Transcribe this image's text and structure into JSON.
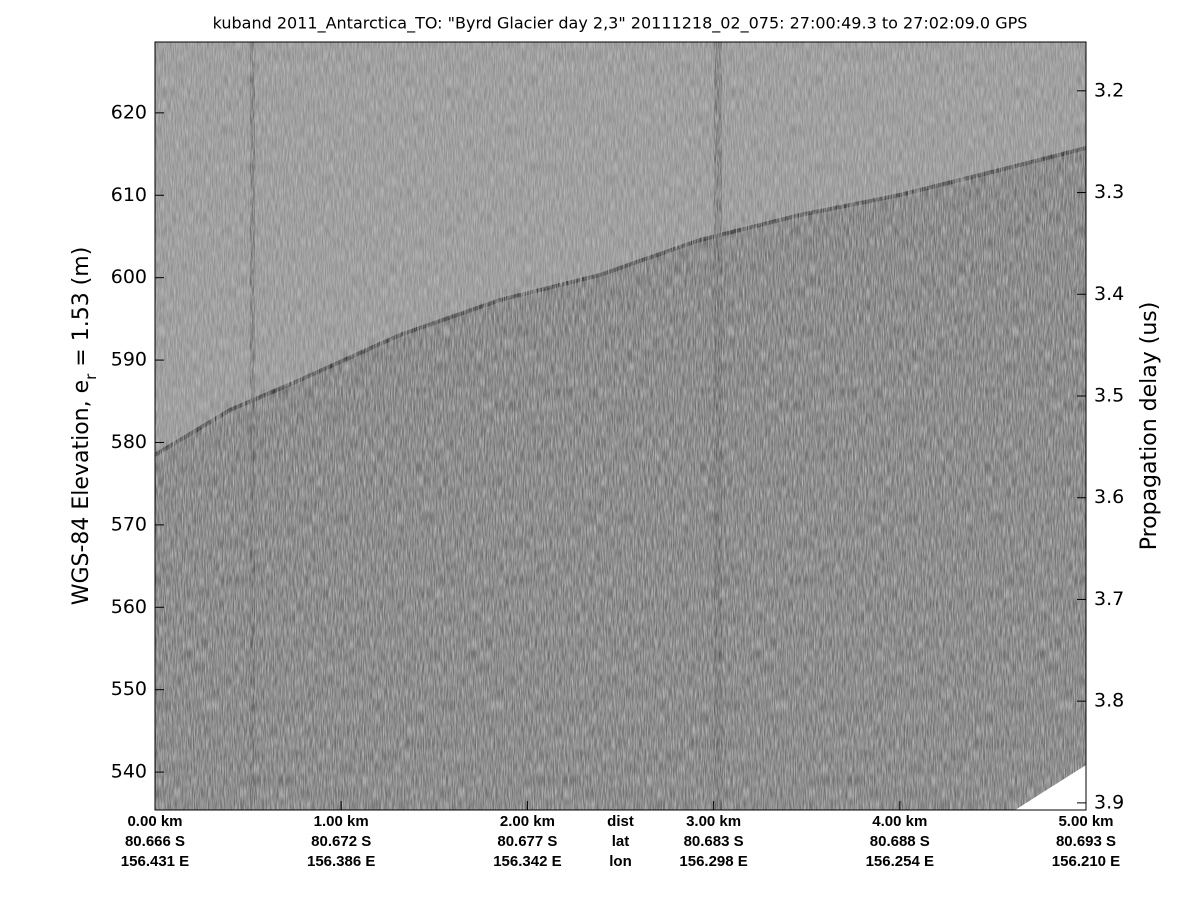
{
  "chart_data": {
    "type": "echogram",
    "title": "kuband 2011_Antarctica_TO: \"Byrd Glacier day 2,3\"  20111218_02_075: 27:00:49.3 to 27:02:09.0 GPS",
    "ylabel": {
      "text": "WGS-84 Elevation, e",
      "sub": "r",
      "rest": " = 1.53 (m)"
    },
    "y2label": "Propagation delay (us)",
    "xlim": [
      0,
      5
    ],
    "xticks": [
      {
        "value": 0,
        "label": "0.00 km"
      },
      {
        "value": 1,
        "label": "1.00 km"
      },
      {
        "value": 2,
        "label": "2.00 km"
      },
      {
        "value": 3,
        "label": "3.00 km"
      },
      {
        "value": 4,
        "label": "4.00 km"
      },
      {
        "value": 5,
        "label": "5.00 km"
      }
    ],
    "lat_labels": [
      "80.666 S",
      "80.672 S",
      "80.677 S",
      "80.683 S",
      "80.688 S",
      "80.693 S"
    ],
    "lon_labels": [
      "156.431 E",
      "156.386 E",
      "156.342 E",
      "156.298 E",
      "156.254 E",
      "156.210 E"
    ],
    "row_labels": [
      "dist",
      "lat",
      "lon"
    ],
    "ylim": [
      535.4,
      628.6
    ],
    "yticks": [
      540,
      550,
      560,
      570,
      580,
      590,
      600,
      610,
      620
    ],
    "y2lim": [
      3.152,
      3.907
    ],
    "y2ticks": [
      3.2,
      3.3,
      3.4,
      3.5,
      3.6,
      3.7,
      3.8,
      3.9
    ]
  }
}
